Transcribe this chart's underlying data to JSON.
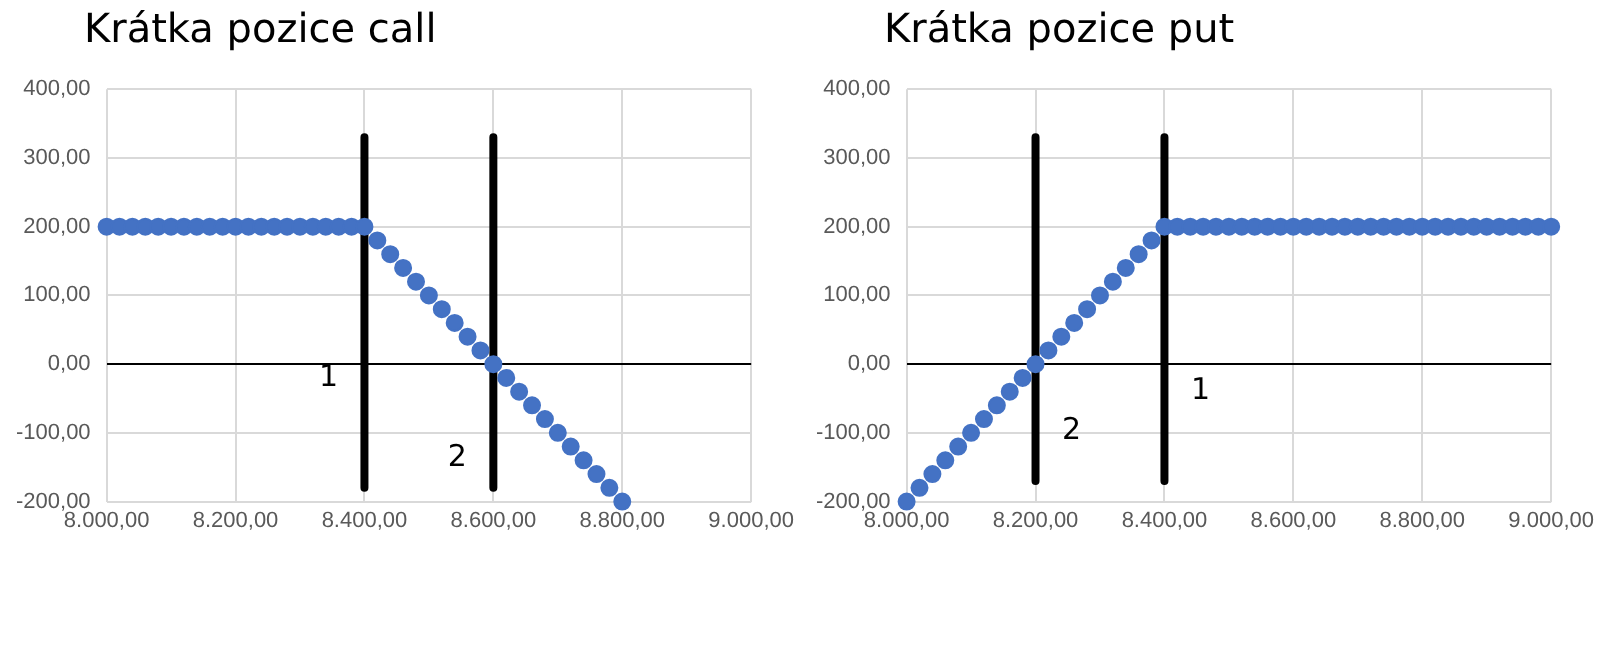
{
  "chart_data": [
    {
      "type": "scatter",
      "title": "Krátka pozice call",
      "marker": "circle",
      "grid": true,
      "x": [
        8000,
        8020,
        8040,
        8060,
        8080,
        8100,
        8120,
        8140,
        8160,
        8180,
        8200,
        8220,
        8240,
        8260,
        8280,
        8300,
        8320,
        8340,
        8360,
        8380,
        8400,
        8420,
        8440,
        8460,
        8480,
        8500,
        8520,
        8540,
        8560,
        8580,
        8600,
        8620,
        8640,
        8660,
        8680,
        8700,
        8720,
        8740,
        8760,
        8780,
        8800
      ],
      "series": [
        {
          "color": "#4472c4",
          "values": [
            200,
            200,
            200,
            200,
            200,
            200,
            200,
            200,
            200,
            200,
            200,
            200,
            200,
            200,
            200,
            200,
            200,
            200,
            200,
            200,
            200,
            180,
            160,
            140,
            120,
            100,
            80,
            60,
            40,
            20,
            0,
            -20,
            -40,
            -60,
            -80,
            -100,
            -120,
            -140,
            -160,
            -180,
            -200
          ]
        },
        {
          "type": "line",
          "name": "1",
          "marker": "none",
          "color": "#000000",
          "x": [
            8400,
            8400
          ],
          "values": [
            330,
            -180
          ]
        },
        {
          "type": "line",
          "name": "2",
          "marker": "none",
          "color": "#000000",
          "x": [
            8600,
            8600
          ],
          "values": [
            330,
            -180
          ]
        }
      ],
      "xlim": [
        8000,
        9000
      ],
      "xticks": [
        {
          "value": 8000,
          "label": "8.000,00"
        },
        {
          "value": 8200,
          "label": "8.200,00"
        },
        {
          "value": 8400,
          "label": "8.400,00"
        },
        {
          "value": 8600,
          "label": "8.600,00"
        },
        {
          "value": 8800,
          "label": "8.800,00"
        },
        {
          "value": 9000,
          "label": "9.000,00"
        }
      ],
      "ylim": [
        -200,
        400
      ],
      "yticks": [
        {
          "value": -200,
          "label": "-200,00"
        },
        {
          "value": -100,
          "label": "-100,00"
        },
        {
          "value": 0,
          "label": "0,00"
        },
        {
          "value": 100,
          "label": "100,00"
        },
        {
          "value": 200,
          "label": "200,00"
        },
        {
          "value": 300,
          "label": "300,00"
        },
        {
          "value": 400,
          "label": "400,00"
        }
      ],
      "legend": false
    },
    {
      "type": "scatter",
      "title": "Krátka pozice put",
      "marker": "circle",
      "grid": true,
      "x": [
        8000,
        8020,
        8040,
        8060,
        8080,
        8100,
        8120,
        8140,
        8160,
        8180,
        8200,
        8220,
        8240,
        8260,
        8280,
        8300,
        8320,
        8340,
        8360,
        8380,
        8400,
        8420,
        8440,
        8460,
        8480,
        8500,
        8520,
        8540,
        8560,
        8580,
        8600,
        8620,
        8640,
        8660,
        8680,
        8700,
        8720,
        8740,
        8760,
        8780,
        8800,
        8820,
        8840,
        8860,
        8880,
        8900,
        8920,
        8940,
        8960,
        8980,
        9000
      ],
      "series": [
        {
          "color": "#4472c4",
          "values": [
            -200,
            -180,
            -160,
            -140,
            -120,
            -100,
            -80,
            -60,
            -40,
            -20,
            0,
            20,
            40,
            60,
            80,
            100,
            120,
            140,
            160,
            180,
            200,
            200,
            200,
            200,
            200,
            200,
            200,
            200,
            200,
            200,
            200,
            200,
            200,
            200,
            200,
            200,
            200,
            200,
            200,
            200,
            200,
            200,
            200,
            200,
            200,
            200,
            200,
            200,
            200,
            200,
            200
          ]
        },
        {
          "type": "line",
          "name": "2",
          "marker": "none",
          "color": "#000000",
          "x": [
            8200,
            8200
          ],
          "values": [
            330,
            -170
          ]
        },
        {
          "type": "line",
          "name": "1",
          "marker": "none",
          "color": "#000000",
          "x": [
            8400,
            8400
          ],
          "values": [
            330,
            -170
          ]
        }
      ],
      "xlim": [
        8000,
        9000
      ],
      "xticks": [
        {
          "value": 8000,
          "label": "8.000,00"
        },
        {
          "value": 8200,
          "label": "8.200,00"
        },
        {
          "value": 8400,
          "label": "8.400,00"
        },
        {
          "value": 8600,
          "label": "8.600,00"
        },
        {
          "value": 8800,
          "label": "8.800,00"
        },
        {
          "value": 9000,
          "label": "9.000,00"
        }
      ],
      "ylim": [
        -200,
        400
      ],
      "yticks": [
        {
          "value": -200,
          "label": "-200,00"
        },
        {
          "value": -100,
          "label": "-100,00"
        },
        {
          "value": 0,
          "label": "0,00"
        },
        {
          "value": 100,
          "label": "100,00"
        },
        {
          "value": 200,
          "label": "200,00"
        },
        {
          "value": 300,
          "label": "300,00"
        },
        {
          "value": 400,
          "label": "400,00"
        }
      ],
      "legend": false
    }
  ]
}
